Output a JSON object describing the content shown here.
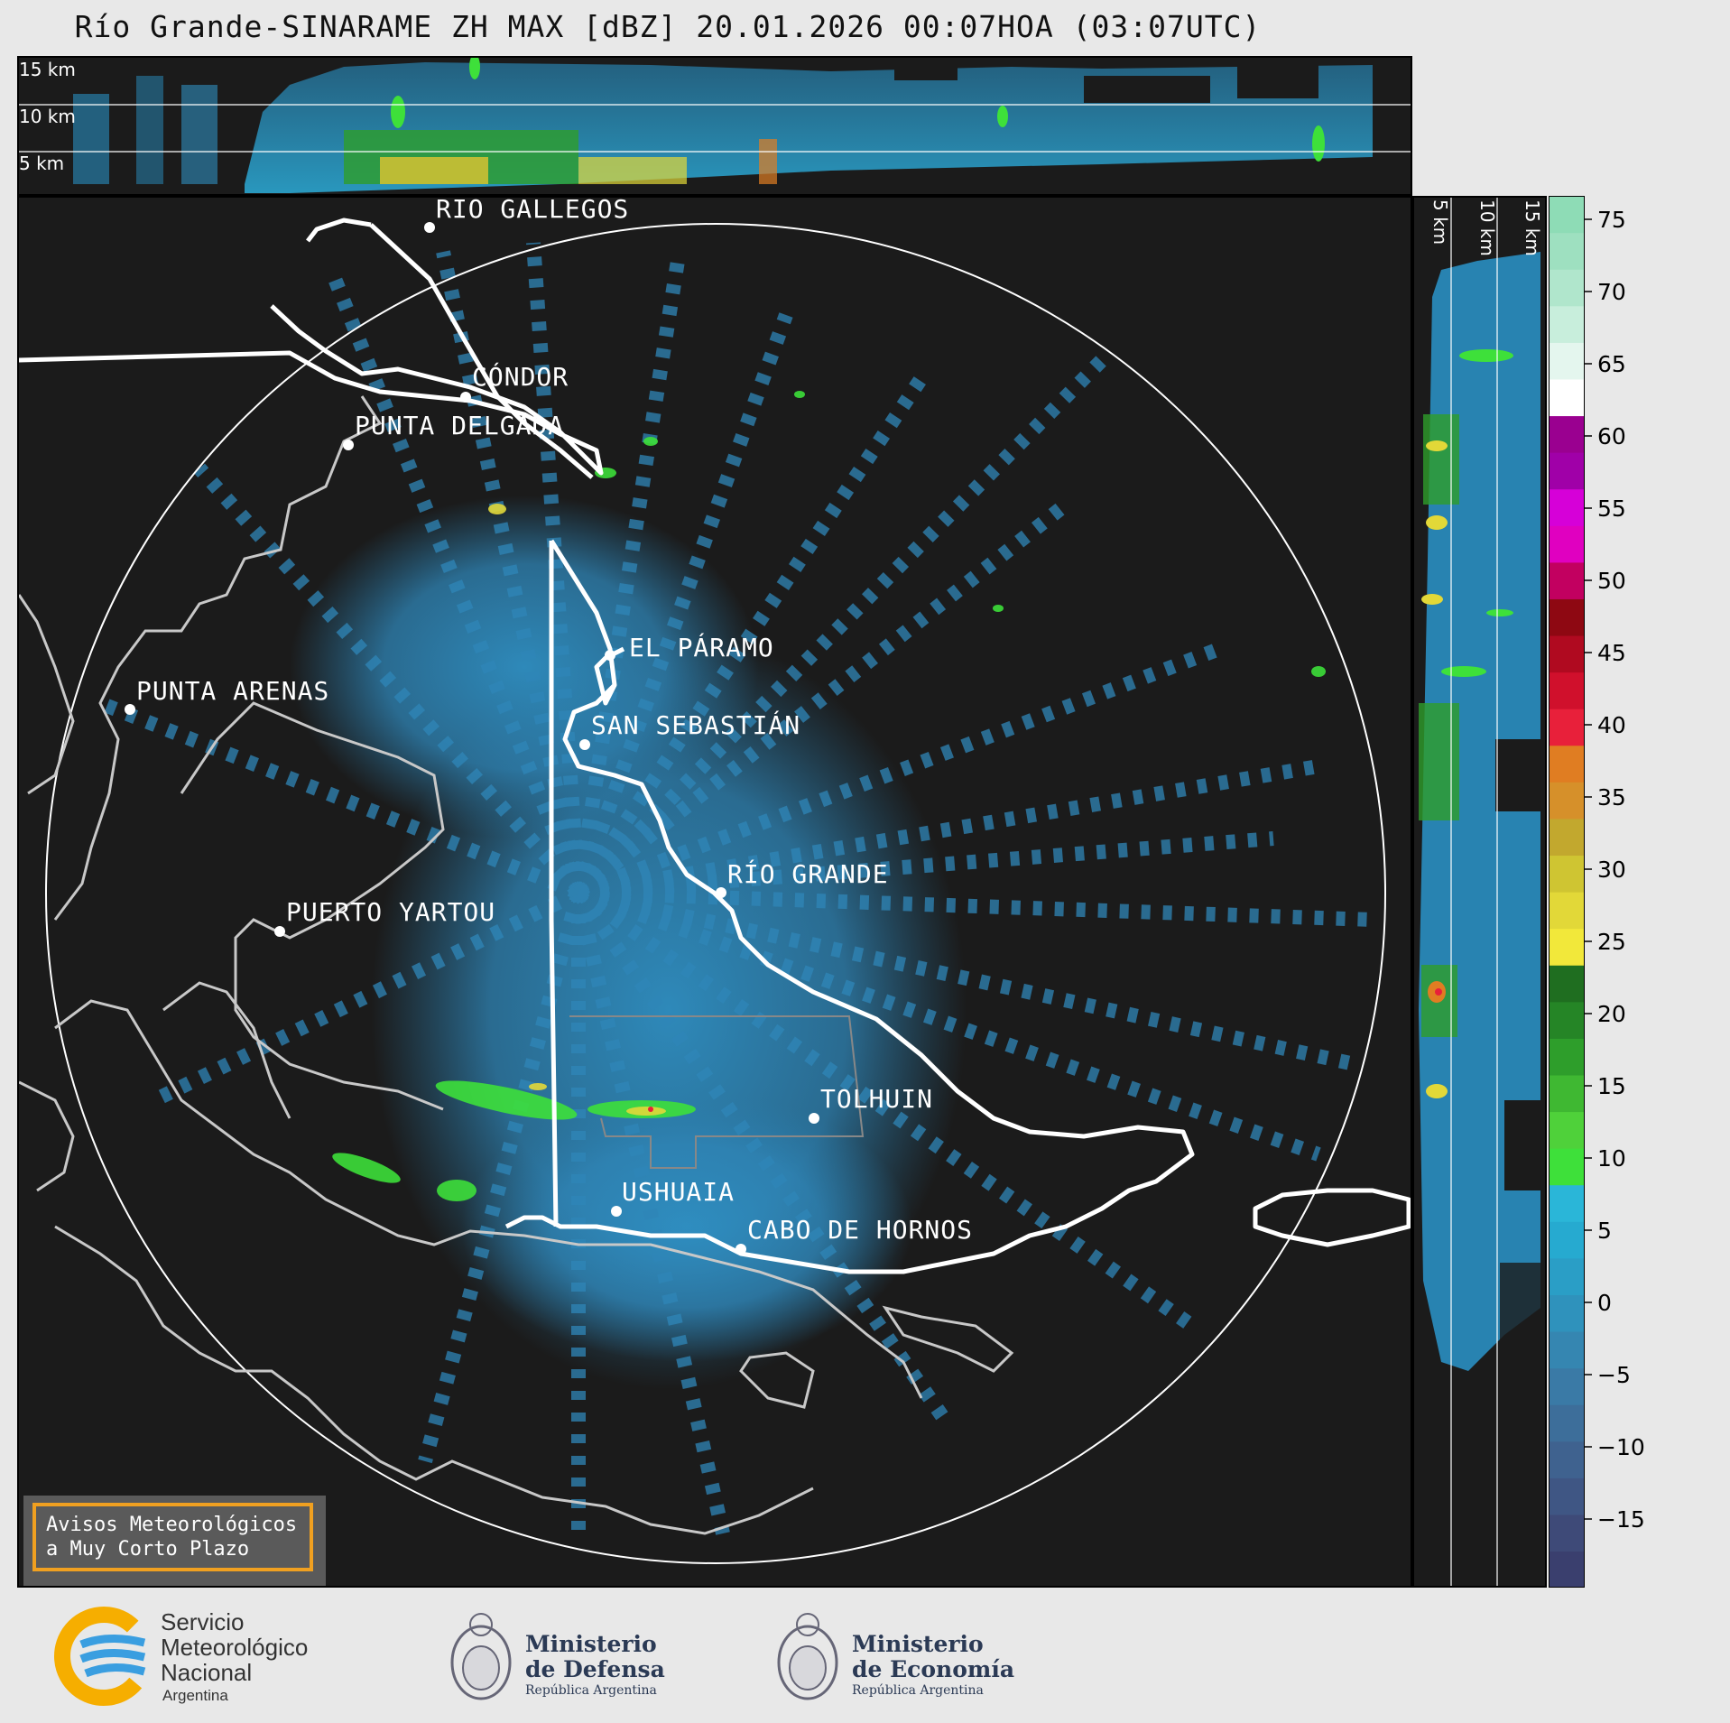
{
  "title": "Río Grande-SINARAME ZH MAX [dBZ] 20.01.2026 00:07HOA (03:07UTC)",
  "top_panel": {
    "altitude_labels": [
      "15 km",
      "10 km",
      "5 km"
    ]
  },
  "right_panel": {
    "altitude_labels": [
      "5 km",
      "10 km",
      "15 km"
    ]
  },
  "cities": [
    {
      "name": "RÍO GALLEGOS"
    },
    {
      "name": "CÓNDOR"
    },
    {
      "name": "PUNTA DELGADA"
    },
    {
      "name": "EL PÁRAMO"
    },
    {
      "name": "PUNTA ARENAS"
    },
    {
      "name": "SAN SEBASTIÁN"
    },
    {
      "name": "RÍO GRANDE"
    },
    {
      "name": "PUERTO YARTOU"
    },
    {
      "name": "TOLHUIN"
    },
    {
      "name": "USHUAIA"
    },
    {
      "name": "CABO DE HORNOS"
    }
  ],
  "notice": {
    "line1": "Avisos Meteorológicos",
    "line2": "a Muy Corto Plazo",
    "border_color": "#f0a020"
  },
  "colorbar": {
    "unit": "dBZ",
    "ticks": [
      "75",
      "70",
      "65",
      "60",
      "55",
      "50",
      "45",
      "40",
      "35",
      "30",
      "25",
      "20",
      "15",
      "10",
      "5",
      "0",
      "−5",
      "−10",
      "−15"
    ],
    "colors": [
      "#3a3f6e",
      "#3e4a78",
      "#3f5684",
      "#3f628f",
      "#3d6e9a",
      "#3a7aa6",
      "#3586b1",
      "#2f92bc",
      "#2a9ec6",
      "#26aad0",
      "#2ab6d8",
      "#3ee03a",
      "#4fd13a",
      "#3fb832",
      "#2e9e2b",
      "#258526",
      "#1f6e20",
      "#f2e83a",
      "#e2d838",
      "#cfc532",
      "#c2a82e",
      "#d6902a",
      "#e07d22",
      "#e8203a",
      "#d0102c",
      "#b00a20",
      "#8e0812",
      "#c20060",
      "#e000c0",
      "#d600d8",
      "#a000a8",
      "#9a0090",
      "#ffffff",
      "#e4f6ee",
      "#c8eedc",
      "#b0e6cc",
      "#9ee0c0",
      "#8edcb6"
    ]
  },
  "logos": {
    "smn": {
      "line1": "Servicio",
      "line2": "Meteorológico",
      "line3": "Nacional",
      "line4": "Argentina"
    },
    "defensa": {
      "line1": "Ministerio",
      "line2": "de Defensa",
      "line3": "República Argentina"
    },
    "economia": {
      "line1": "Ministerio",
      "line2": "de Economía",
      "line3": "República Argentina"
    }
  }
}
